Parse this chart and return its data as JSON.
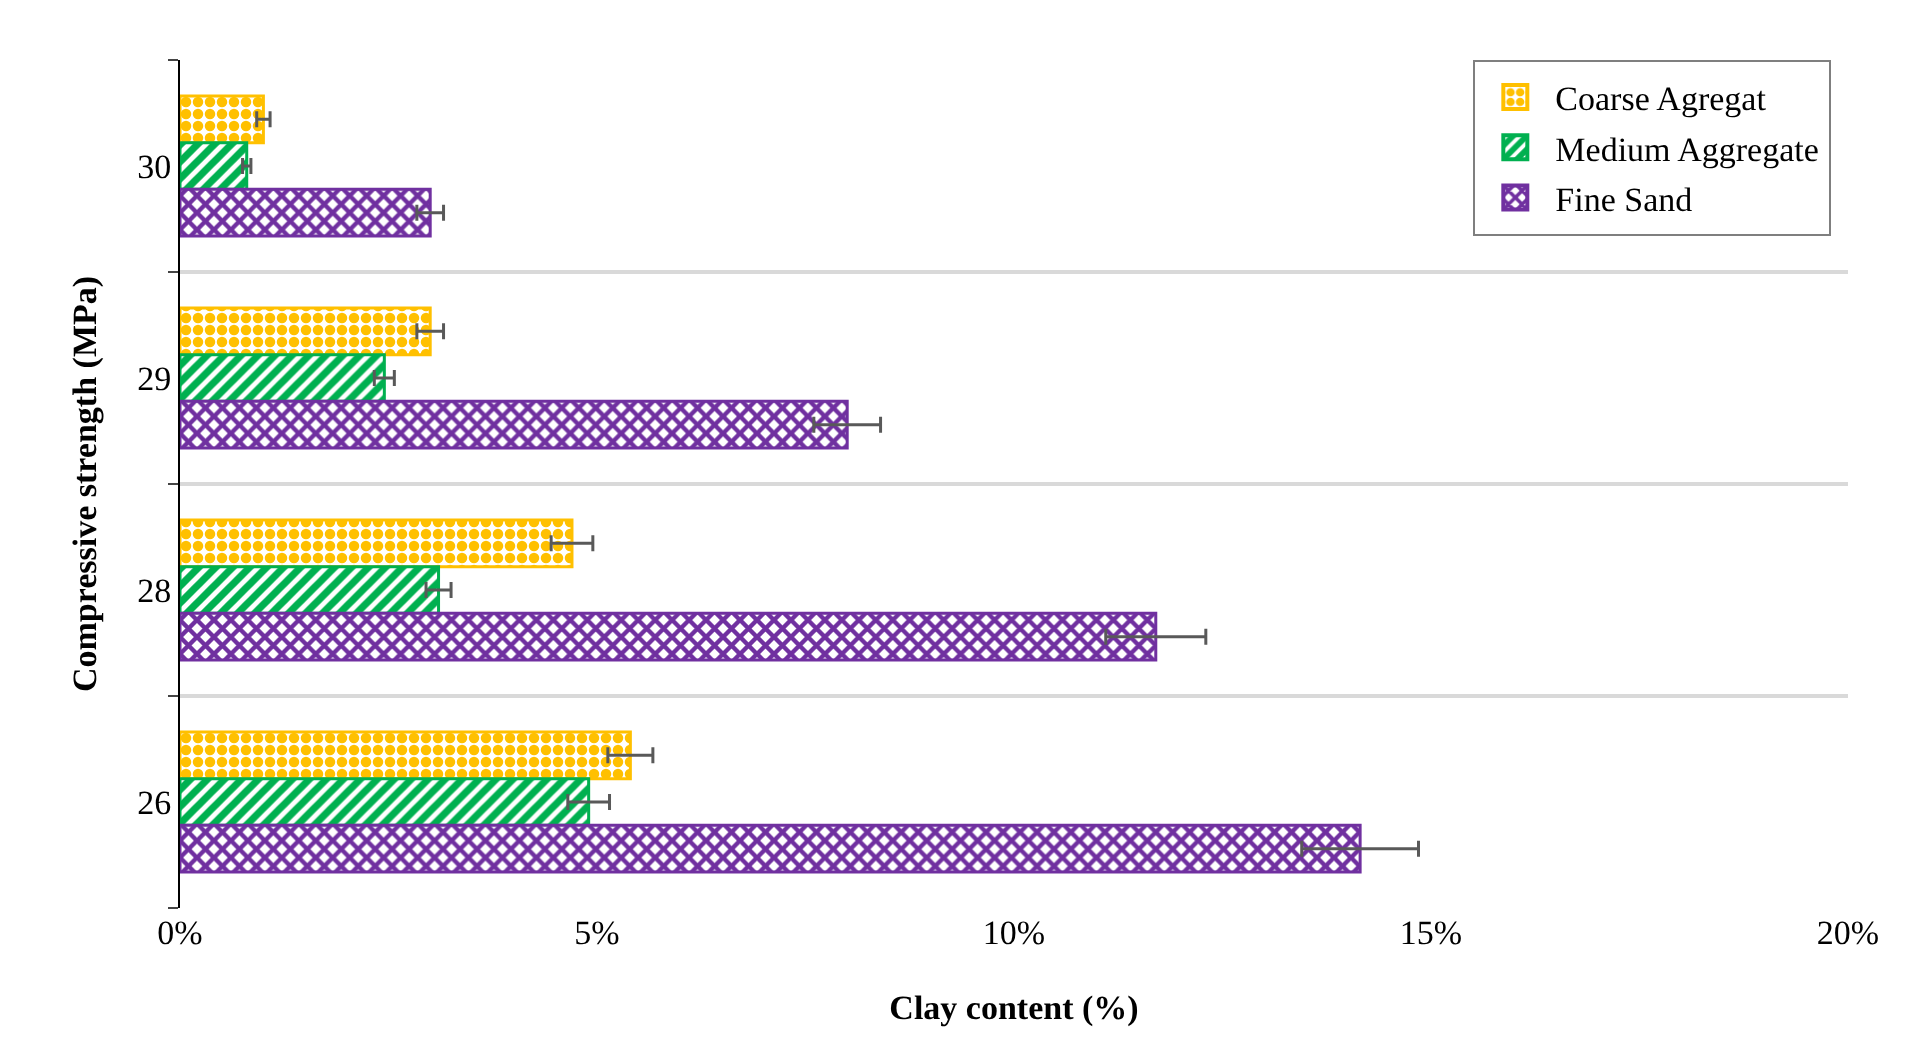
{
  "chart_data": {
    "type": "bar",
    "orientation": "horizontal",
    "xlabel": "Clay content (%)",
    "ylabel": "Compressive strength (MPa)",
    "categories": [
      "30",
      "29",
      "28",
      "26"
    ],
    "series": [
      {
        "name": "Coarse Agregat",
        "color": "#ffc000",
        "values": [
          1.0,
          3.0,
          4.7,
          5.4
        ],
        "errors": [
          0.08,
          0.16,
          0.25,
          0.27
        ]
      },
      {
        "name": "Medium Aggregate",
        "color": "#00b050",
        "values": [
          0.8,
          2.45,
          3.1,
          4.9
        ],
        "errors": [
          0.05,
          0.12,
          0.15,
          0.25
        ]
      },
      {
        "name": "Fine Sand",
        "color": "#7030a0",
        "values": [
          3.0,
          8.0,
          11.7,
          14.15
        ],
        "errors": [
          0.16,
          0.4,
          0.6,
          0.7
        ]
      }
    ],
    "xlim": [
      0,
      20
    ],
    "xticks": [
      {
        "value": 0,
        "label": "0%"
      },
      {
        "value": 5,
        "label": "5%"
      },
      {
        "value": 10,
        "label": "10%"
      },
      {
        "value": 15,
        "label": "15%"
      },
      {
        "value": 20,
        "label": "20%"
      }
    ],
    "grid": "y",
    "legend": "top right"
  }
}
